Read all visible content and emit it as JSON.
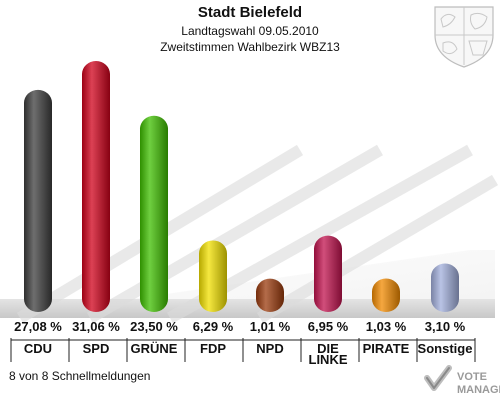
{
  "header": {
    "title": "Stadt Bielefeld",
    "subtitle1": "Landtagswahl 09.05.2010",
    "subtitle2": "Zweitstimmen Wahlbezirk WBZ13"
  },
  "footer": {
    "note": "8 von 8 Schnellmeldungen",
    "logo_text": "VOTE MANAGER"
  },
  "chart_data": {
    "type": "bar",
    "title": "Stadt Bielefeld",
    "subtitle": [
      "Landtagswahl 09.05.2010",
      "Zweitstimmen Wahlbezirk WBZ13"
    ],
    "categories": [
      "CDU",
      "SPD",
      "GRÜNE",
      "FDP",
      "NPD",
      "DIE LINKE",
      "PIRATE",
      "Sonstige"
    ],
    "category_lines": [
      [
        "CDU"
      ],
      [
        "SPD"
      ],
      [
        "GRÜNE"
      ],
      [
        "FDP"
      ],
      [
        "NPD"
      ],
      [
        "DIE",
        "LINKE"
      ],
      [
        "PIRATE"
      ],
      [
        "Sonstige"
      ]
    ],
    "values": [
      27.08,
      31.06,
      23.5,
      6.29,
      1.01,
      6.95,
      1.03,
      3.1
    ],
    "value_labels": [
      "27,08 %",
      "31,06 %",
      "23,50 %",
      "6,29 %",
      "1,01 %",
      "6,95 %",
      "1,03 %",
      "3,10 %"
    ],
    "colors": [
      "#3d3d3d",
      "#d0011b",
      "#3fbf00",
      "#f2e000",
      "#9b3b0d",
      "#c2134f",
      "#f28a00",
      "#a2afdc"
    ],
    "ylim": [
      0,
      33
    ],
    "xlabel": "",
    "ylabel": "",
    "grid": false,
    "legend": "none"
  }
}
